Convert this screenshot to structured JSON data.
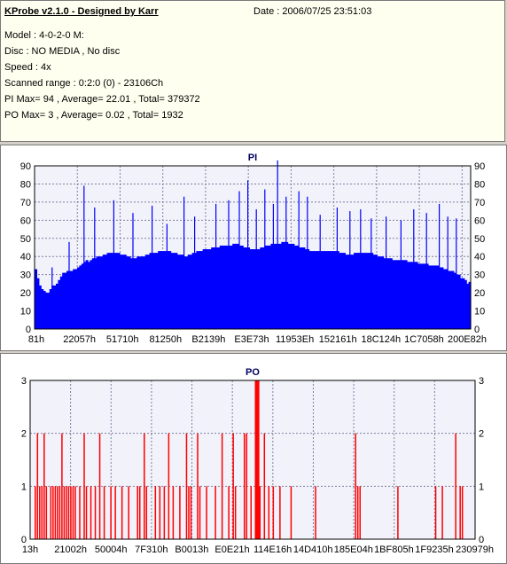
{
  "header": {
    "title": "KProbe v2.1.0 - Designed by Karr",
    "date": "Date : 2006/07/25 23:51:03",
    "model": "Model : 4-0-2-0 M:",
    "disc": "Disc : NO MEDIA , No disc",
    "speed": "Speed : 4x",
    "scanned_range": "Scanned range : 0:2:0 (0) - 23106Ch",
    "pi_summary": "PI Max= 94 , Average= 22.01 , Total= 379372",
    "po_summary": "PO Max= 3 , Average= 0.02 , Total= 1932"
  },
  "colors": {
    "pi_bar": "#0000ff",
    "po_bar": "#ff0000",
    "grid": "#7f7f9f",
    "plot_bg": "#f2f2fa"
  },
  "chart_data": [
    {
      "type": "bar",
      "title": "PI",
      "ylim": [
        0,
        90
      ],
      "yticks": [
        0,
        10,
        20,
        30,
        40,
        50,
        60,
        70,
        80,
        90
      ],
      "x_tick_labels": [
        "81h",
        "22057h",
        "51710h",
        "81250h",
        "B2139h",
        "E3E73h",
        "11953Eh",
        "152161h",
        "18C124h",
        "1C7058h",
        "200E82h"
      ],
      "grid": true,
      "series": [
        {
          "values": [
            33,
            28,
            24,
            22,
            21,
            20,
            20,
            22,
            24,
            24,
            25,
            27,
            29,
            31,
            31,
            32,
            32,
            32,
            33,
            33,
            34,
            35,
            36,
            37,
            38,
            37,
            38,
            39,
            39,
            40,
            40,
            40,
            41,
            41,
            42,
            42,
            42,
            42,
            42,
            42,
            41,
            41,
            41,
            40,
            40,
            39,
            39,
            39,
            40,
            40,
            40,
            40,
            41,
            41,
            42,
            42,
            42,
            42,
            43,
            43,
            43,
            43,
            43,
            43,
            42,
            42,
            42,
            41,
            41,
            41,
            40,
            40,
            41,
            41,
            42,
            42,
            43,
            43,
            43,
            44,
            44,
            44,
            44,
            45,
            45,
            45,
            45,
            46,
            46,
            46,
            46,
            46,
            46,
            47,
            47,
            47,
            46,
            46,
            45,
            45,
            45,
            44,
            44,
            44,
            44,
            44,
            45,
            45,
            46,
            46,
            46,
            47,
            47,
            47,
            47,
            47,
            48,
            48,
            48,
            47,
            47,
            47,
            46,
            46,
            45,
            45,
            45,
            44,
            44,
            43,
            43,
            43,
            43,
            43,
            43,
            43,
            43,
            43,
            43,
            43,
            43,
            43,
            43,
            42,
            42,
            42,
            41,
            41,
            41,
            41,
            42,
            42,
            42,
            42,
            42,
            42,
            42,
            42,
            42,
            41,
            41,
            40,
            40,
            40,
            39,
            39,
            39,
            39,
            38,
            38,
            38,
            38,
            38,
            38,
            38,
            37,
            37,
            37,
            37,
            37,
            36,
            36,
            36,
            36,
            36,
            35,
            35,
            35,
            35,
            35,
            34,
            34,
            33,
            33,
            32,
            32,
            32,
            31,
            30,
            30,
            28,
            28,
            27,
            25,
            26
          ],
          "peaks": [
            {
              "x": 8,
              "y": 34
            },
            {
              "x": 16,
              "y": 48
            },
            {
              "x": 23,
              "y": 79
            },
            {
              "x": 28,
              "y": 67
            },
            {
              "x": 37,
              "y": 71
            },
            {
              "x": 46,
              "y": 64
            },
            {
              "x": 55,
              "y": 68
            },
            {
              "x": 62,
              "y": 58
            },
            {
              "x": 70,
              "y": 73
            },
            {
              "x": 75,
              "y": 62
            },
            {
              "x": 85,
              "y": 69
            },
            {
              "x": 91,
              "y": 71
            },
            {
              "x": 96,
              "y": 76
            },
            {
              "x": 100,
              "y": 82
            },
            {
              "x": 104,
              "y": 66
            },
            {
              "x": 108,
              "y": 77
            },
            {
              "x": 112,
              "y": 69
            },
            {
              "x": 114,
              "y": 93
            },
            {
              "x": 118,
              "y": 73
            },
            {
              "x": 124,
              "y": 76
            },
            {
              "x": 128,
              "y": 73
            },
            {
              "x": 134,
              "y": 63
            },
            {
              "x": 142,
              "y": 67
            },
            {
              "x": 148,
              "y": 65
            },
            {
              "x": 153,
              "y": 66
            },
            {
              "x": 158,
              "y": 61
            },
            {
              "x": 165,
              "y": 62
            },
            {
              "x": 172,
              "y": 60
            },
            {
              "x": 178,
              "y": 66
            },
            {
              "x": 184,
              "y": 64
            },
            {
              "x": 190,
              "y": 69
            },
            {
              "x": 194,
              "y": 62
            },
            {
              "x": 198,
              "y": 61
            }
          ]
        }
      ]
    },
    {
      "type": "bar",
      "title": "PO",
      "ylim": [
        0,
        3
      ],
      "yticks": [
        0,
        1,
        2,
        3
      ],
      "x_tick_labels": [
        "13h",
        "21002h",
        "50004h",
        "7F310h",
        "B0013h",
        "E0E21h",
        "114E16h",
        "14D410h",
        "185E04h",
        "1BF805h",
        "1F9235h",
        "230979h"
      ],
      "grid": true,
      "series": [
        {
          "values": [
            {
              "x": 2,
              "y": 1
            },
            {
              "x": 3,
              "y": 2
            },
            {
              "x": 4,
              "y": 1
            },
            {
              "x": 5,
              "y": 1
            },
            {
              "x": 6,
              "y": 2
            },
            {
              "x": 7,
              "y": 1
            },
            {
              "x": 9,
              "y": 1
            },
            {
              "x": 10,
              "y": 1
            },
            {
              "x": 11,
              "y": 1
            },
            {
              "x": 12,
              "y": 1
            },
            {
              "x": 13,
              "y": 1
            },
            {
              "x": 14,
              "y": 2
            },
            {
              "x": 15,
              "y": 1
            },
            {
              "x": 16,
              "y": 1
            },
            {
              "x": 17,
              "y": 1
            },
            {
              "x": 18,
              "y": 1
            },
            {
              "x": 19,
              "y": 1
            },
            {
              "x": 20,
              "y": 1
            },
            {
              "x": 22,
              "y": 1
            },
            {
              "x": 24,
              "y": 2
            },
            {
              "x": 25,
              "y": 1
            },
            {
              "x": 27,
              "y": 1
            },
            {
              "x": 29,
              "y": 1
            },
            {
              "x": 31,
              "y": 2
            },
            {
              "x": 33,
              "y": 1
            },
            {
              "x": 36,
              "y": 1
            },
            {
              "x": 38,
              "y": 1
            },
            {
              "x": 41,
              "y": 1
            },
            {
              "x": 44,
              "y": 1
            },
            {
              "x": 48,
              "y": 1
            },
            {
              "x": 49,
              "y": 1
            },
            {
              "x": 51,
              "y": 2
            },
            {
              "x": 52,
              "y": 1
            },
            {
              "x": 56,
              "y": 1
            },
            {
              "x": 58,
              "y": 1
            },
            {
              "x": 60,
              "y": 1
            },
            {
              "x": 62,
              "y": 2
            },
            {
              "x": 64,
              "y": 1
            },
            {
              "x": 67,
              "y": 1
            },
            {
              "x": 70,
              "y": 2
            },
            {
              "x": 71,
              "y": 1
            },
            {
              "x": 72,
              "y": 1
            },
            {
              "x": 75,
              "y": 2
            },
            {
              "x": 76,
              "y": 1
            },
            {
              "x": 79,
              "y": 1
            },
            {
              "x": 83,
              "y": 1
            },
            {
              "x": 86,
              "y": 2
            },
            {
              "x": 89,
              "y": 1
            },
            {
              "x": 91,
              "y": 2
            },
            {
              "x": 92,
              "y": 1
            },
            {
              "x": 96,
              "y": 2
            },
            {
              "x": 97,
              "y": 2
            },
            {
              "x": 99,
              "y": 1
            },
            {
              "x": 101,
              "y": 3
            },
            {
              "x": 102,
              "y": 3
            },
            {
              "x": 103,
              "y": 1
            },
            {
              "x": 105,
              "y": 2
            },
            {
              "x": 107,
              "y": 1
            },
            {
              "x": 109,
              "y": 1
            },
            {
              "x": 112,
              "y": 1
            },
            {
              "x": 117,
              "y": 1
            },
            {
              "x": 128,
              "y": 1
            },
            {
              "x": 146,
              "y": 2
            },
            {
              "x": 147,
              "y": 1
            },
            {
              "x": 148,
              "y": 1
            },
            {
              "x": 165,
              "y": 1
            },
            {
              "x": 182,
              "y": 1
            },
            {
              "x": 185,
              "y": 1
            },
            {
              "x": 191,
              "y": 2
            },
            {
              "x": 193,
              "y": 1
            },
            {
              "x": 194,
              "y": 1
            }
          ]
        }
      ]
    }
  ]
}
